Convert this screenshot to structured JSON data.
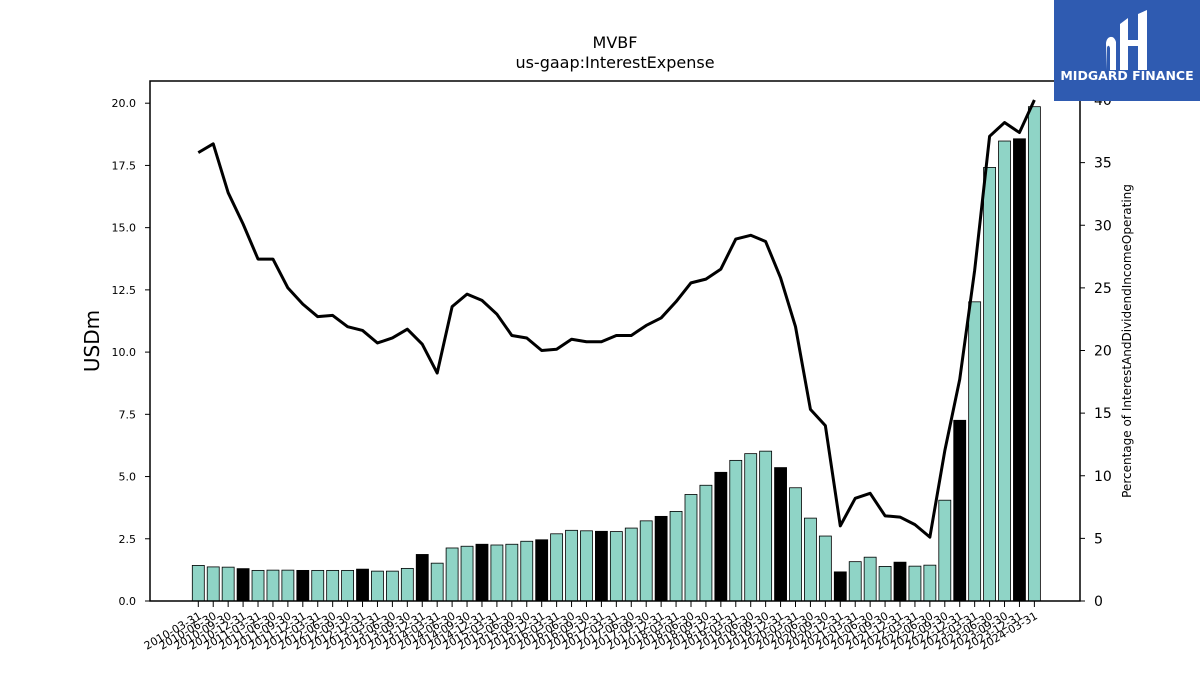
{
  "chart_data": {
    "type": "bar",
    "title": "MVBF",
    "subtitle": "us-gaap:InterestExpense",
    "ylabel": "USDm",
    "ylabel_right": "Percentage of InterestAndDividendIncomeOperating",
    "ylim": [
      0,
      20.9
    ],
    "ylim_right": [
      0,
      41.8
    ],
    "yticks": [
      "0.0",
      "2.5",
      "5.0",
      "7.5",
      "10.0",
      "12.5",
      "15.0",
      "17.5",
      "20.0"
    ],
    "yticks_right": [
      "0",
      "5",
      "10",
      "15",
      "20",
      "25",
      "30",
      "35",
      "40"
    ],
    "categories": [
      "2010-03-31",
      "2010-06-30",
      "2010-09-30",
      "2010-12-31",
      "2011-03-31",
      "2011-06-30",
      "2011-09-30",
      "2011-12-31",
      "2012-03-31",
      "2012-06-30",
      "2012-09-30",
      "2012-12-31",
      "2013-03-31",
      "2013-06-30",
      "2013-09-30",
      "2013-12-31",
      "2014-03-31",
      "2014-06-30",
      "2014-09-30",
      "2014-12-31",
      "2015-03-31",
      "2015-06-30",
      "2015-09-30",
      "2015-12-31",
      "2016-03-31",
      "2016-06-30",
      "2016-09-30",
      "2016-12-31",
      "2017-03-31",
      "2017-06-30",
      "2017-09-30",
      "2017-12-31",
      "2018-03-31",
      "2018-06-30",
      "2018-09-30",
      "2018-12-31",
      "2019-03-31",
      "2019-06-30",
      "2019-09-30",
      "2019-12-31",
      "2020-03-31",
      "2020-06-30",
      "2020-09-30",
      "2020-12-31",
      "2021-03-31",
      "2021-06-30",
      "2021-09-30",
      "2021-12-31",
      "2022-03-31",
      "2022-06-30",
      "2022-09-30",
      "2022-12-31",
      "2023-03-31",
      "2023-06-30",
      "2023-09-30",
      "2023-12-31",
      "2024-03-31"
    ],
    "series": [
      {
        "type": "bar",
        "axis": "left",
        "values": [
          1.43,
          1.37,
          1.36,
          1.3,
          1.23,
          1.24,
          1.24,
          1.23,
          1.23,
          1.23,
          1.23,
          1.28,
          1.2,
          1.2,
          1.31,
          1.87,
          1.52,
          2.13,
          2.2,
          2.28,
          2.25,
          2.28,
          2.4,
          2.46,
          2.7,
          2.84,
          2.82,
          2.8,
          2.79,
          2.93,
          3.22,
          3.4,
          3.6,
          4.28,
          4.65,
          5.17,
          5.65,
          5.92,
          6.02,
          5.36,
          4.55,
          3.33,
          2.61,
          1.17,
          1.58,
          1.76,
          1.39,
          1.56,
          1.4,
          1.44,
          4.05,
          7.26,
          12.02,
          17.42,
          18.48,
          18.57,
          19.86
        ],
        "highlight": [
          3,
          7,
          11,
          15,
          19,
          23,
          27,
          31,
          35,
          39,
          43,
          47,
          51,
          55
        ],
        "color": "#8fd4c6",
        "highlight_color": "#000000"
      },
      {
        "type": "line",
        "axis": "right",
        "color": "#000000",
        "values": [
          35.8,
          36.5,
          32.6,
          30.1,
          27.3,
          27.3,
          25.0,
          23.7,
          22.7,
          22.8,
          21.9,
          21.6,
          20.6,
          21.0,
          21.7,
          20.5,
          18.2,
          23.5,
          24.5,
          24.0,
          22.9,
          21.2,
          21.0,
          20.0,
          20.1,
          20.9,
          20.7,
          20.7,
          21.2,
          21.2,
          22.0,
          22.6,
          23.9,
          25.4,
          25.7,
          26.5,
          28.9,
          29.2,
          28.7,
          25.8,
          21.9,
          15.3,
          14.0,
          6.0,
          8.2,
          8.6,
          6.8,
          6.7,
          6.1,
          5.1,
          12.0,
          17.7,
          26.4,
          37.1,
          38.2,
          37.4,
          40.0
        ]
      }
    ],
    "grid": false
  },
  "logo": {
    "text": "MIDGARD FINANCE",
    "background": "#2f5bb1",
    "text_color": "#ffffff"
  }
}
